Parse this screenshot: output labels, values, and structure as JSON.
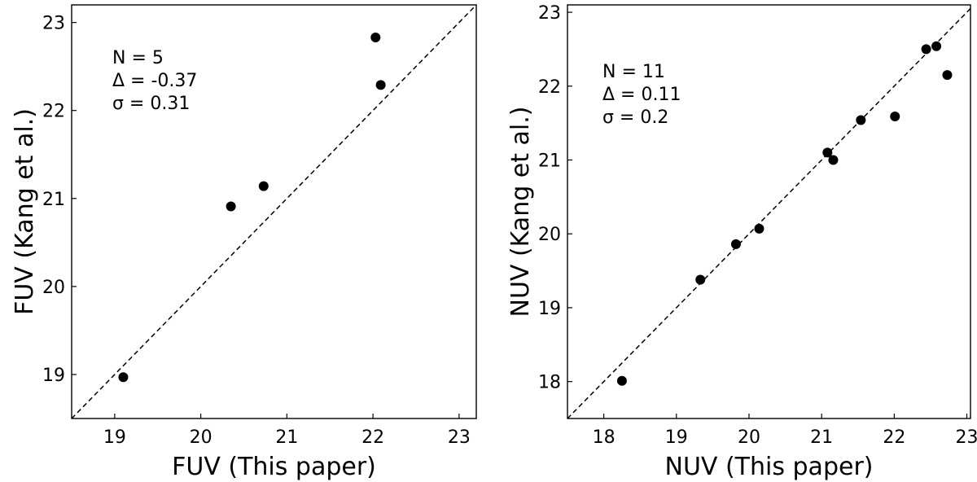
{
  "chart_data": [
    {
      "type": "scatter",
      "xlabel": "FUV (This paper)",
      "ylabel": "FUV (Kang et al.)",
      "xlim": [
        18.5,
        23.2
      ],
      "ylim": [
        18.5,
        23.2
      ],
      "xticks": [
        19,
        20,
        21,
        22,
        23
      ],
      "yticks": [
        19,
        20,
        21,
        22,
        23
      ],
      "identity_line": true,
      "grid": false,
      "annotations": [
        "N = 5",
        "Δ = -0.37",
        "σ = 0.31"
      ],
      "points": [
        {
          "x": 19.1,
          "y": 18.97
        },
        {
          "x": 20.35,
          "y": 20.91
        },
        {
          "x": 20.73,
          "y": 21.14
        },
        {
          "x": 22.03,
          "y": 22.83
        },
        {
          "x": 22.09,
          "y": 22.29
        }
      ]
    },
    {
      "type": "scatter",
      "xlabel": "NUV (This paper)",
      "ylabel": "NUV (Kang et al.)",
      "xlim": [
        17.5,
        23.05
      ],
      "ylim": [
        17.5,
        23.1
      ],
      "xticks": [
        18,
        19,
        20,
        21,
        22,
        23
      ],
      "yticks": [
        18,
        19,
        20,
        21,
        22,
        23
      ],
      "identity_line": true,
      "grid": false,
      "annotations": [
        "N = 11",
        "Δ = 0.11",
        "σ = 0.2"
      ],
      "points": [
        {
          "x": 18.25,
          "y": 18.01
        },
        {
          "x": 19.33,
          "y": 19.38
        },
        {
          "x": 19.82,
          "y": 19.86
        },
        {
          "x": 20.14,
          "y": 20.07
        },
        {
          "x": 21.08,
          "y": 21.1
        },
        {
          "x": 21.16,
          "y": 21.0
        },
        {
          "x": 21.54,
          "y": 21.54
        },
        {
          "x": 22.01,
          "y": 21.59
        },
        {
          "x": 22.44,
          "y": 22.5
        },
        {
          "x": 22.58,
          "y": 22.54
        },
        {
          "x": 22.73,
          "y": 22.15
        }
      ]
    }
  ]
}
